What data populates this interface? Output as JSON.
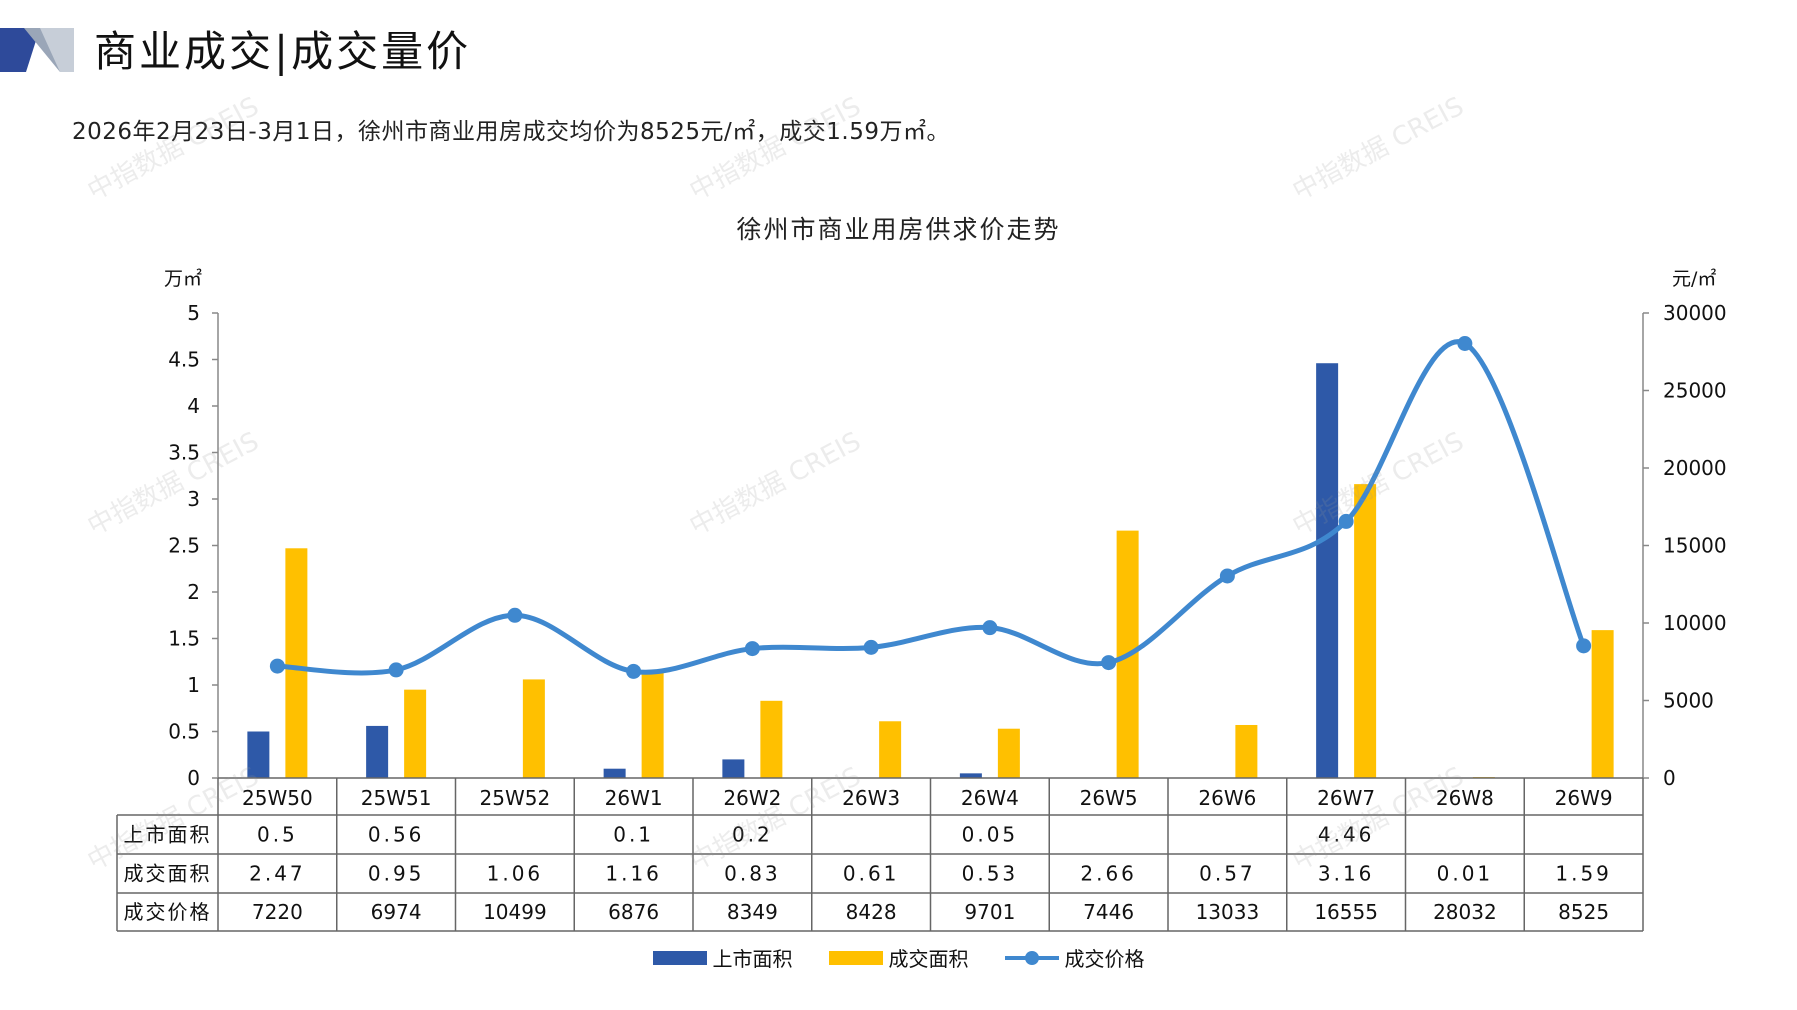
{
  "header": {
    "title": "商业成交|成交量价",
    "summary": "2026年2月23日-3月1日，徐州市商业用房成交均价为8525元/㎡，成交1.59万㎡。"
  },
  "watermark_text": "中指数据 CREIS",
  "chart_data": {
    "type": "bar",
    "title": "徐州市商业用房供求价走势",
    "left_unit": "万㎡",
    "right_unit": "元/㎡",
    "categories": [
      "25W50",
      "25W51",
      "25W52",
      "26W1",
      "26W2",
      "26W3",
      "26W4",
      "26W5",
      "26W6",
      "26W7",
      "26W8",
      "26W9"
    ],
    "left_ylim": [
      0,
      5
    ],
    "left_ticks": [
      "0",
      "0.5",
      "1",
      "1.5",
      "2",
      "2.5",
      "3",
      "3.5",
      "4",
      "4.5",
      "5"
    ],
    "right_ylim": [
      0,
      30000
    ],
    "right_ticks": [
      "0",
      "5000",
      "10000",
      "15000",
      "20000",
      "25000",
      "30000"
    ],
    "series": [
      {
        "name": "上市面积",
        "type": "bar",
        "axis": "left",
        "color": "#2e59a8",
        "values": [
          0.5,
          0.56,
          null,
          0.1,
          0.2,
          null,
          0.05,
          null,
          null,
          4.46,
          null,
          null
        ],
        "labels": [
          "0.5",
          "0.56",
          "",
          "0.1",
          "0.2",
          "",
          "0.05",
          "",
          "",
          "4.46",
          "",
          ""
        ]
      },
      {
        "name": "成交面积",
        "type": "bar",
        "axis": "left",
        "color": "#ffc000",
        "values": [
          2.47,
          0.95,
          1.06,
          1.16,
          0.83,
          0.61,
          0.53,
          2.66,
          0.57,
          3.16,
          0.01,
          1.59
        ],
        "labels": [
          "2.47",
          "0.95",
          "1.06",
          "1.16",
          "0.83",
          "0.61",
          "0.53",
          "2.66",
          "0.57",
          "3.16",
          "0.01",
          "1.59"
        ]
      },
      {
        "name": "成交价格",
        "type": "line",
        "axis": "right",
        "color": "#3f88cf",
        "values": [
          7220,
          6974,
          10499,
          6876,
          8349,
          8428,
          9701,
          7446,
          13033,
          16555,
          28032,
          8525
        ],
        "labels": [
          "7220",
          "6974",
          "10499",
          "6876",
          "8349",
          "8428",
          "9701",
          "7446",
          "13033",
          "16555",
          "28032",
          "8525"
        ]
      }
    ],
    "grid": false,
    "legend_position": "bottom"
  }
}
